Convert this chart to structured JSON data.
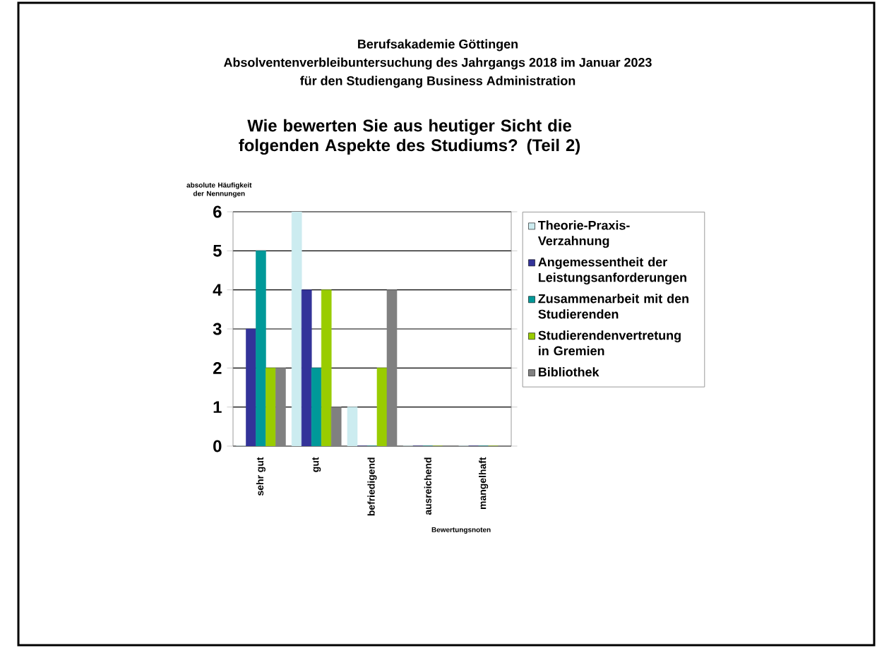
{
  "chart_data": {
    "type": "bar",
    "title": "Wie bewerten Sie aus heutiger Sicht die folgenden Aspekte des Studiums? (Teil 2)",
    "subtitle": "Berufsakademie Göttingen",
    "annotations": [
      "Absolventenverbleibuntersuchung des Jahrgangs 2018 im Januar 2023",
      "für den Studiengang Business Administration"
    ],
    "xlabel": "Bewertungsnoten",
    "ylabel": "absolute Häufigkeit der Nennungen",
    "categories": [
      "sehr gut",
      "gut",
      "befriedigend",
      "ausreichend",
      "mangelhaft"
    ],
    "series": [
      {
        "name": "Theorie-Praxis-Verzahnung",
        "color": "#ccecf0",
        "values": [
          0,
          6,
          1,
          0,
          0
        ]
      },
      {
        "name": "Angemessentheit der Leistungsanforderungen",
        "color": "#333399",
        "values": [
          3,
          4,
          0,
          0,
          0
        ]
      },
      {
        "name": "Zusammenarbeit mit den Studierenden",
        "color": "#009999",
        "values": [
          5,
          2,
          0,
          0,
          0
        ]
      },
      {
        "name": "Studierendenvertretung in Gremien",
        "color": "#99cc00",
        "values": [
          2,
          4,
          2,
          0,
          0
        ]
      },
      {
        "name": "Bibliothek",
        "color": "#808080",
        "values": [
          2,
          1,
          4,
          0,
          0
        ]
      }
    ],
    "ylim": [
      0,
      6
    ],
    "yticks": [
      0,
      1,
      2,
      3,
      4,
      5,
      6
    ],
    "grid": "y",
    "legend": "right"
  }
}
